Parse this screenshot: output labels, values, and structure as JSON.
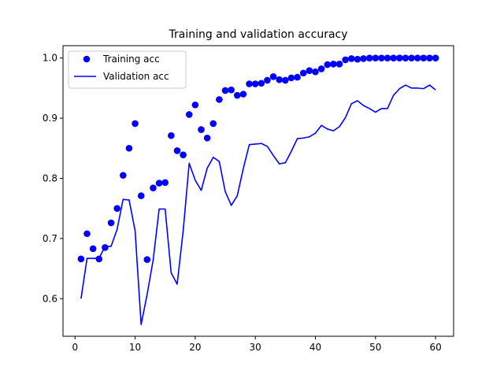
{
  "chart_data": {
    "type": "line",
    "title": "Training and validation accuracy",
    "xlabel": "",
    "ylabel": "",
    "xlim": [
      -2,
      63
    ],
    "ylim": [
      0.5375,
      1.0205
    ],
    "xticks": [
      0,
      10,
      20,
      30,
      40,
      50,
      60
    ],
    "yticks": [
      0.6,
      0.7,
      0.8,
      0.9,
      1.0
    ],
    "ytick_labels": [
      "0.6",
      "0.7",
      "0.8",
      "0.9",
      "1.0"
    ],
    "grid": false,
    "legend_position": "top-left",
    "series": [
      {
        "name": "Training acc",
        "style": "markers",
        "color": "#0000ff",
        "x": [
          1,
          2,
          3,
          4,
          5,
          6,
          7,
          8,
          9,
          10,
          11,
          12,
          13,
          14,
          15,
          16,
          17,
          18,
          19,
          20,
          21,
          22,
          23,
          24,
          25,
          26,
          27,
          28,
          29,
          30,
          31,
          32,
          33,
          34,
          35,
          36,
          37,
          38,
          39,
          40,
          41,
          42,
          43,
          44,
          45,
          46,
          47,
          48,
          49,
          50,
          51,
          52,
          53,
          54,
          55,
          56,
          57,
          58,
          59,
          60
        ],
        "values": [
          0.666,
          0.708,
          0.683,
          0.666,
          0.685,
          0.726,
          0.75,
          0.805,
          0.85,
          0.891,
          0.771,
          0.665,
          0.784,
          0.792,
          0.793,
          0.871,
          0.846,
          0.839,
          0.906,
          0.922,
          0.881,
          0.867,
          0.891,
          0.931,
          0.946,
          0.947,
          0.938,
          0.94,
          0.957,
          0.957,
          0.958,
          0.963,
          0.969,
          0.964,
          0.963,
          0.967,
          0.968,
          0.975,
          0.979,
          0.977,
          0.982,
          0.989,
          0.99,
          0.99,
          0.997,
          0.999,
          0.998,
          0.999,
          1.0,
          1.0,
          1.0,
          1.0,
          1.0,
          1.0,
          1.0,
          1.0,
          1.0,
          1.0,
          1.0,
          1.0
        ]
      },
      {
        "name": "Validation acc",
        "style": "line",
        "color": "#0000ff",
        "x": [
          1,
          2,
          3,
          4,
          5,
          6,
          7,
          8,
          9,
          10,
          11,
          12,
          13,
          14,
          15,
          16,
          17,
          18,
          19,
          20,
          21,
          22,
          23,
          24,
          25,
          26,
          27,
          28,
          29,
          30,
          31,
          32,
          33,
          34,
          35,
          36,
          37,
          38,
          39,
          40,
          41,
          42,
          43,
          44,
          45,
          46,
          47,
          48,
          49,
          50,
          51,
          52,
          53,
          54,
          55,
          56,
          57,
          58,
          59,
          60
        ],
        "values": [
          0.6,
          0.667,
          0.667,
          0.667,
          0.687,
          0.687,
          0.715,
          0.765,
          0.764,
          0.713,
          0.557,
          0.607,
          0.664,
          0.749,
          0.749,
          0.643,
          0.624,
          0.713,
          0.825,
          0.797,
          0.78,
          0.817,
          0.835,
          0.828,
          0.778,
          0.755,
          0.771,
          0.816,
          0.856,
          0.857,
          0.858,
          0.853,
          0.838,
          0.824,
          0.826,
          0.845,
          0.866,
          0.867,
          0.869,
          0.875,
          0.888,
          0.882,
          0.879,
          0.886,
          0.901,
          0.924,
          0.929,
          0.921,
          0.916,
          0.91,
          0.916,
          0.916,
          0.938,
          0.949,
          0.955,
          0.95,
          0.95,
          0.949,
          0.955,
          0.947
        ]
      }
    ]
  }
}
